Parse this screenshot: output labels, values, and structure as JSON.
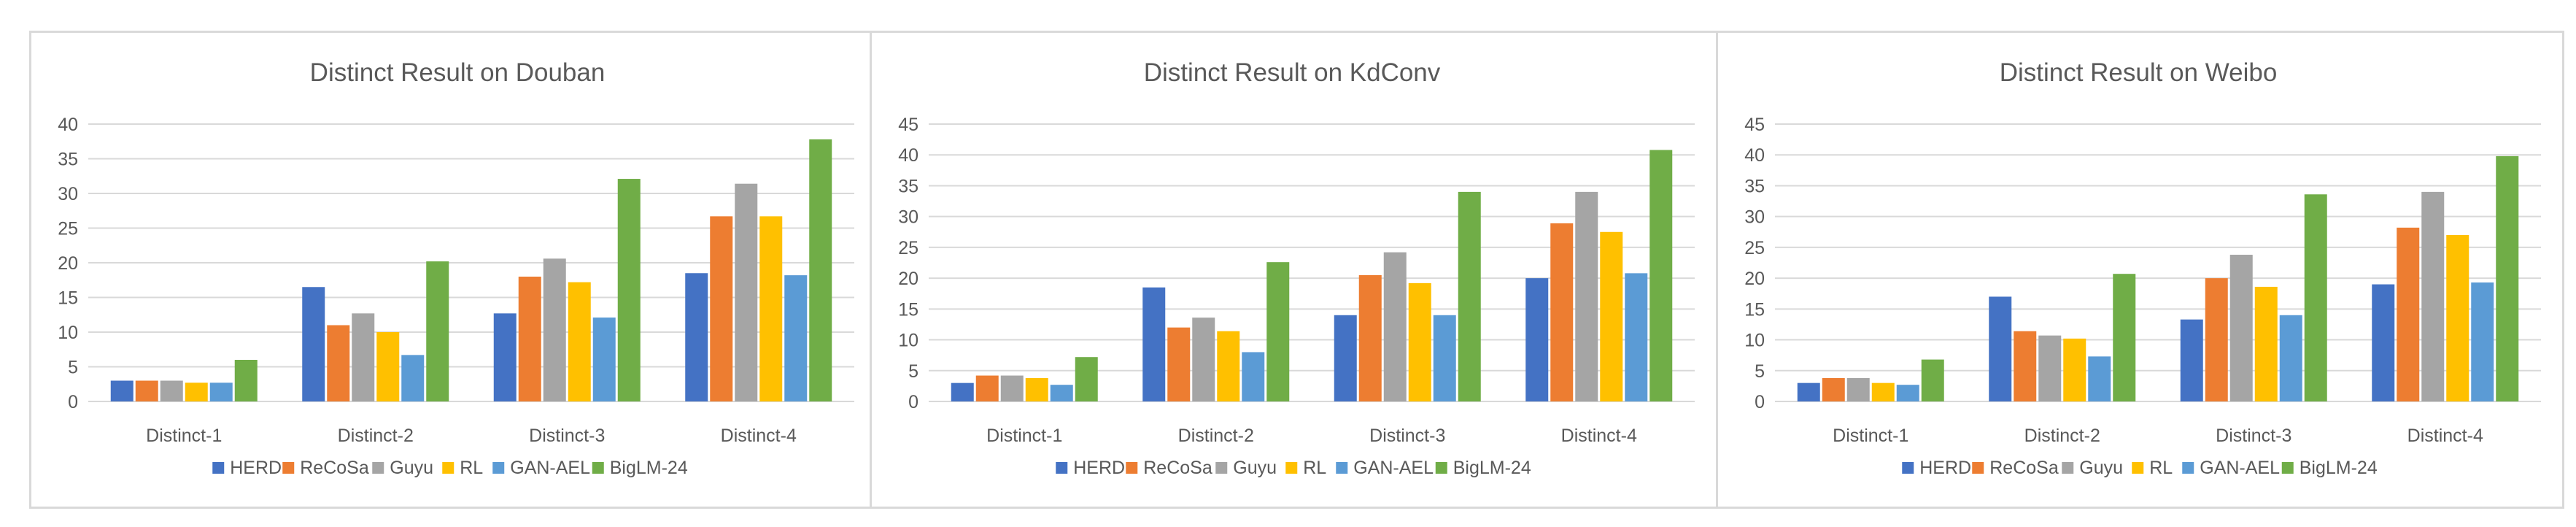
{
  "legend": [
    "HERD",
    "ReCoSa",
    "Guyu",
    "RL",
    "GAN-AEL",
    "BigLM-24"
  ],
  "series_colors": [
    "#4472c4",
    "#ed7d31",
    "#a5a5a5",
    "#ffc000",
    "#5b9bd5",
    "#70ad47"
  ],
  "chart_data": [
    {
      "type": "bar",
      "title": "Distinct Result on Douban",
      "categories": [
        "Distinct-1",
        "Distinct-2",
        "Distinct-3",
        "Distinct-4"
      ],
      "ylim": [
        0,
        40
      ],
      "yticks": [
        0,
        5,
        10,
        15,
        20,
        25,
        30,
        35,
        40
      ],
      "grid": true,
      "legend_position": "bottom",
      "series": [
        {
          "name": "HERD",
          "values": [
            3.0,
            16.5,
            12.7,
            18.5
          ]
        },
        {
          "name": "ReCoSa",
          "values": [
            3.0,
            11.0,
            18.0,
            26.7
          ]
        },
        {
          "name": "Guyu",
          "values": [
            3.0,
            12.7,
            20.6,
            31.4
          ]
        },
        {
          "name": "RL",
          "values": [
            2.7,
            10.0,
            17.2,
            26.7
          ]
        },
        {
          "name": "GAN-AEL",
          "values": [
            2.7,
            6.7,
            12.1,
            18.2
          ]
        },
        {
          "name": "BigLM-24",
          "values": [
            6.0,
            20.2,
            32.1,
            37.8
          ]
        }
      ]
    },
    {
      "type": "bar",
      "title": "Distinct Result on KdConv",
      "categories": [
        "Distinct-1",
        "Distinct-2",
        "Distinct-3",
        "Distinct-4"
      ],
      "ylim": [
        0,
        45
      ],
      "yticks": [
        0,
        5,
        10,
        15,
        20,
        25,
        30,
        35,
        40,
        45
      ],
      "grid": true,
      "legend_position": "bottom",
      "series": [
        {
          "name": "HERD",
          "values": [
            3.0,
            18.5,
            14.0,
            20.0
          ]
        },
        {
          "name": "ReCoSa",
          "values": [
            4.2,
            12.0,
            20.5,
            28.9
          ]
        },
        {
          "name": "Guyu",
          "values": [
            4.2,
            13.6,
            24.2,
            34.0
          ]
        },
        {
          "name": "RL",
          "values": [
            3.8,
            11.4,
            19.2,
            27.5
          ]
        },
        {
          "name": "GAN-AEL",
          "values": [
            2.7,
            8.0,
            14.0,
            20.8
          ]
        },
        {
          "name": "BigLM-24",
          "values": [
            7.2,
            22.6,
            34.0,
            40.8
          ]
        }
      ]
    },
    {
      "type": "bar",
      "title": "Distinct Result on Weibo",
      "categories": [
        "Distinct-1",
        "Distinct-2",
        "Distinct-3",
        "Distinct-4"
      ],
      "ylim": [
        0,
        45
      ],
      "yticks": [
        0,
        5,
        10,
        15,
        20,
        25,
        30,
        35,
        40,
        45
      ],
      "grid": true,
      "legend_position": "bottom",
      "series": [
        {
          "name": "HERD",
          "values": [
            3.0,
            17.0,
            13.3,
            19.0
          ]
        },
        {
          "name": "ReCoSa",
          "values": [
            3.8,
            11.4,
            20.0,
            28.2
          ]
        },
        {
          "name": "Guyu",
          "values": [
            3.8,
            10.7,
            23.8,
            34.0
          ]
        },
        {
          "name": "RL",
          "values": [
            3.0,
            10.2,
            18.6,
            27.0
          ]
        },
        {
          "name": "GAN-AEL",
          "values": [
            2.7,
            7.3,
            14.0,
            19.3
          ]
        },
        {
          "name": "BigLM-24",
          "values": [
            6.8,
            20.7,
            33.6,
            39.8
          ]
        }
      ]
    }
  ]
}
